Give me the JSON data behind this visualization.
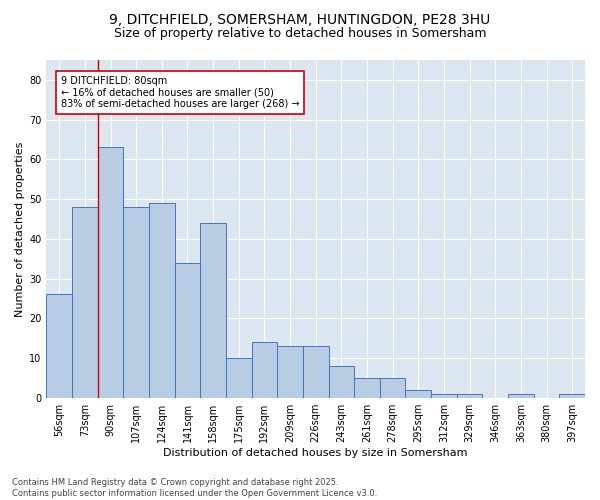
{
  "title_line1": "9, DITCHFIELD, SOMERSHAM, HUNTINGDON, PE28 3HU",
  "title_line2": "Size of property relative to detached houses in Somersham",
  "xlabel": "Distribution of detached houses by size in Somersham",
  "ylabel": "Number of detached properties",
  "categories": [
    "56sqm",
    "73sqm",
    "90sqm",
    "107sqm",
    "124sqm",
    "141sqm",
    "158sqm",
    "175sqm",
    "192sqm",
    "209sqm",
    "226sqm",
    "243sqm",
    "261sqm",
    "278sqm",
    "295sqm",
    "312sqm",
    "329sqm",
    "346sqm",
    "363sqm",
    "380sqm",
    "397sqm"
  ],
  "values": [
    26,
    48,
    63,
    48,
    49,
    34,
    44,
    10,
    14,
    13,
    13,
    8,
    5,
    5,
    2,
    1,
    1,
    0,
    1,
    0,
    1
  ],
  "bar_color": "#b8cce4",
  "bar_edge_color": "#4472c4",
  "plot_bg_color": "#dce6f1",
  "fig_bg_color": "#ffffff",
  "grid_color": "#ffffff",
  "annotation_text": "9 DITCHFIELD: 80sqm\n← 16% of detached houses are smaller (50)\n83% of semi-detached houses are larger (268) →",
  "vline_color": "#cc0000",
  "annotation_box_facecolor": "#ffffff",
  "annotation_box_edgecolor": "#cc0000",
  "ylim": [
    0,
    85
  ],
  "yticks": [
    0,
    10,
    20,
    30,
    40,
    50,
    60,
    70,
    80
  ],
  "title_fontsize": 10,
  "subtitle_fontsize": 9,
  "axis_label_fontsize": 8,
  "tick_fontsize": 7,
  "annotation_fontsize": 7,
  "footnote_fontsize": 6,
  "footnote": "Contains HM Land Registry data © Crown copyright and database right 2025.\nContains public sector information licensed under the Open Government Licence v3.0."
}
